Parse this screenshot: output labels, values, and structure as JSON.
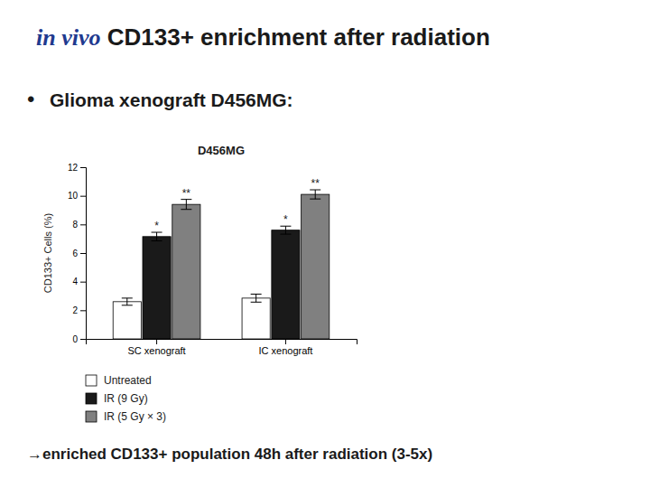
{
  "slide_title": {
    "italic": "in vivo",
    "italic_color": "#1f3a8f",
    "text": " CD133+ enrichment after radiation"
  },
  "bullet": {
    "symbol": "•",
    "text": "Glioma xenograft D456MG:"
  },
  "note": "→enriched CD133+ population 48h after radiation (3-5x)",
  "chart_data": {
    "type": "bar",
    "title": "D456MG",
    "ylabel": "CD133+ Cells (%)",
    "categories": [
      "SC xenograft",
      "IC xenograft"
    ],
    "series": [
      {
        "name": "Untreated",
        "color": "#ffffff",
        "values": [
          2.6,
          2.85
        ],
        "errors": [
          0.25,
          0.28
        ]
      },
      {
        "name": "IR (9 Gy)",
        "color": "#1a1a1a",
        "values": [
          7.15,
          7.6
        ],
        "errors": [
          0.3,
          0.28
        ],
        "significance": [
          "*",
          "*"
        ]
      },
      {
        "name": "IR (5 Gy × 3)",
        "color": "#808080",
        "values": [
          9.4,
          10.1
        ],
        "errors": [
          0.35,
          0.32
        ],
        "significance": [
          "**",
          "**"
        ]
      }
    ],
    "ylim": [
      0,
      12
    ],
    "yticks": [
      0,
      2,
      4,
      6,
      8,
      10,
      12
    ],
    "grid": false,
    "legend": "bottom"
  }
}
